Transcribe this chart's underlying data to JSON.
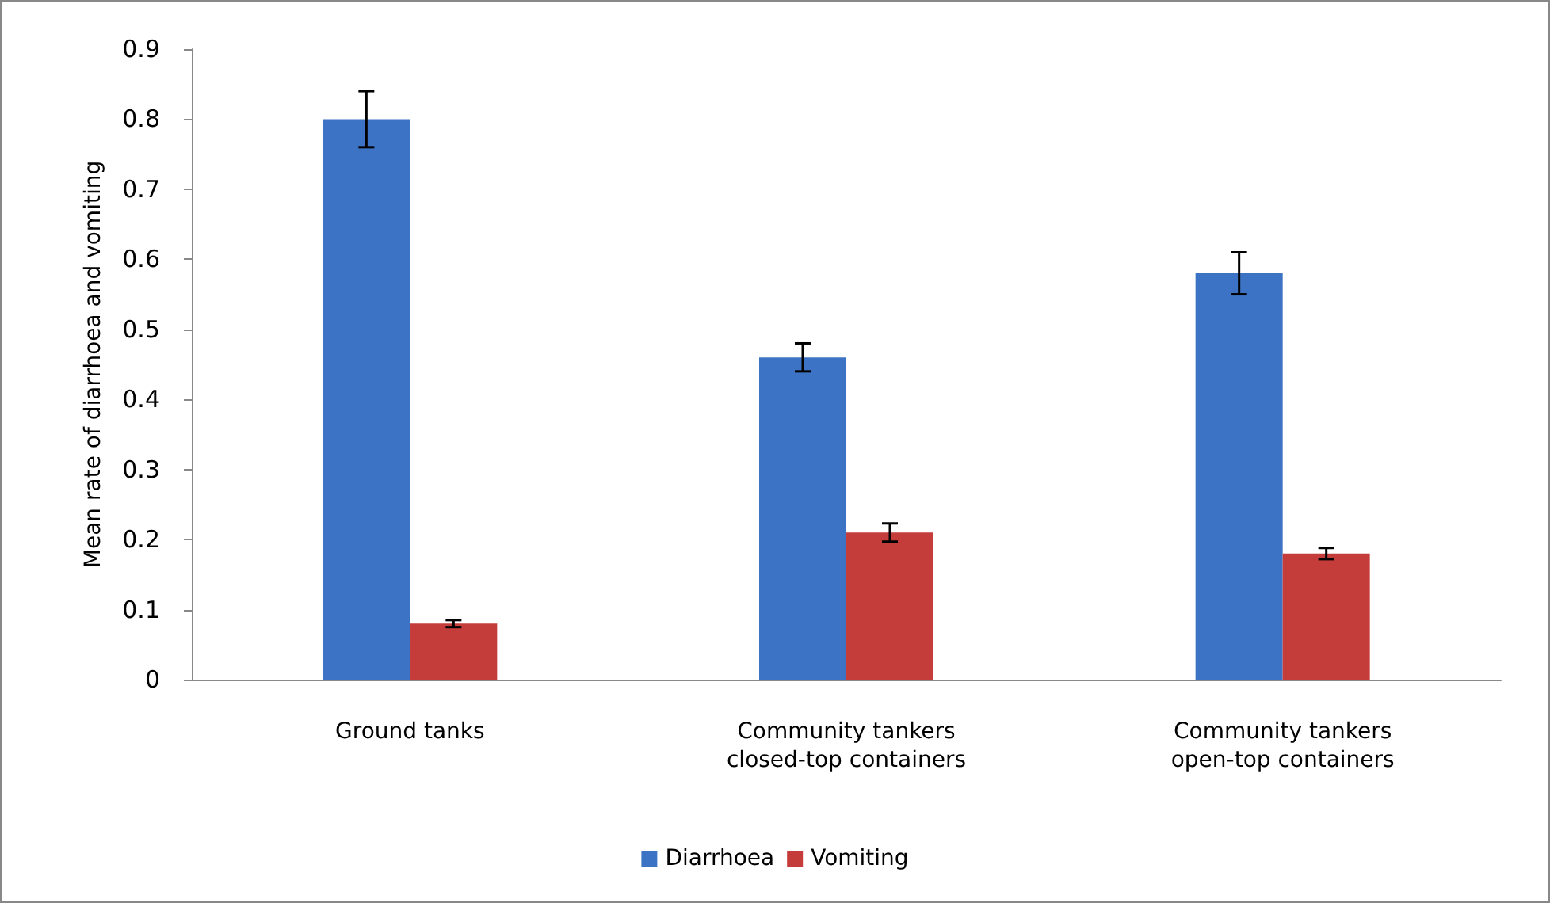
{
  "chart_data": {
    "type": "bar",
    "ylabel": "Mean rate of diarrhoea and vomiting",
    "categories": [
      "Ground tanks",
      "Community tankers\nclosed-top containers",
      "Community tankers\nopen-top containers"
    ],
    "series": [
      {
        "name": "Diarrhoea",
        "color": "#3d73c4",
        "values": [
          0.8,
          0.46,
          0.58
        ],
        "errors": [
          0.04,
          0.02,
          0.03
        ]
      },
      {
        "name": "Vomiting",
        "color": "#c43d3a",
        "values": [
          0.08,
          0.21,
          0.18
        ],
        "errors": [
          0.005,
          0.013,
          0.008
        ]
      }
    ],
    "ylim": [
      0,
      0.9
    ],
    "yticks": [
      0,
      0.1,
      0.2,
      0.3,
      0.4,
      0.5,
      0.6,
      0.7,
      0.8,
      0.9
    ],
    "grid": false,
    "legend": "bottom"
  }
}
